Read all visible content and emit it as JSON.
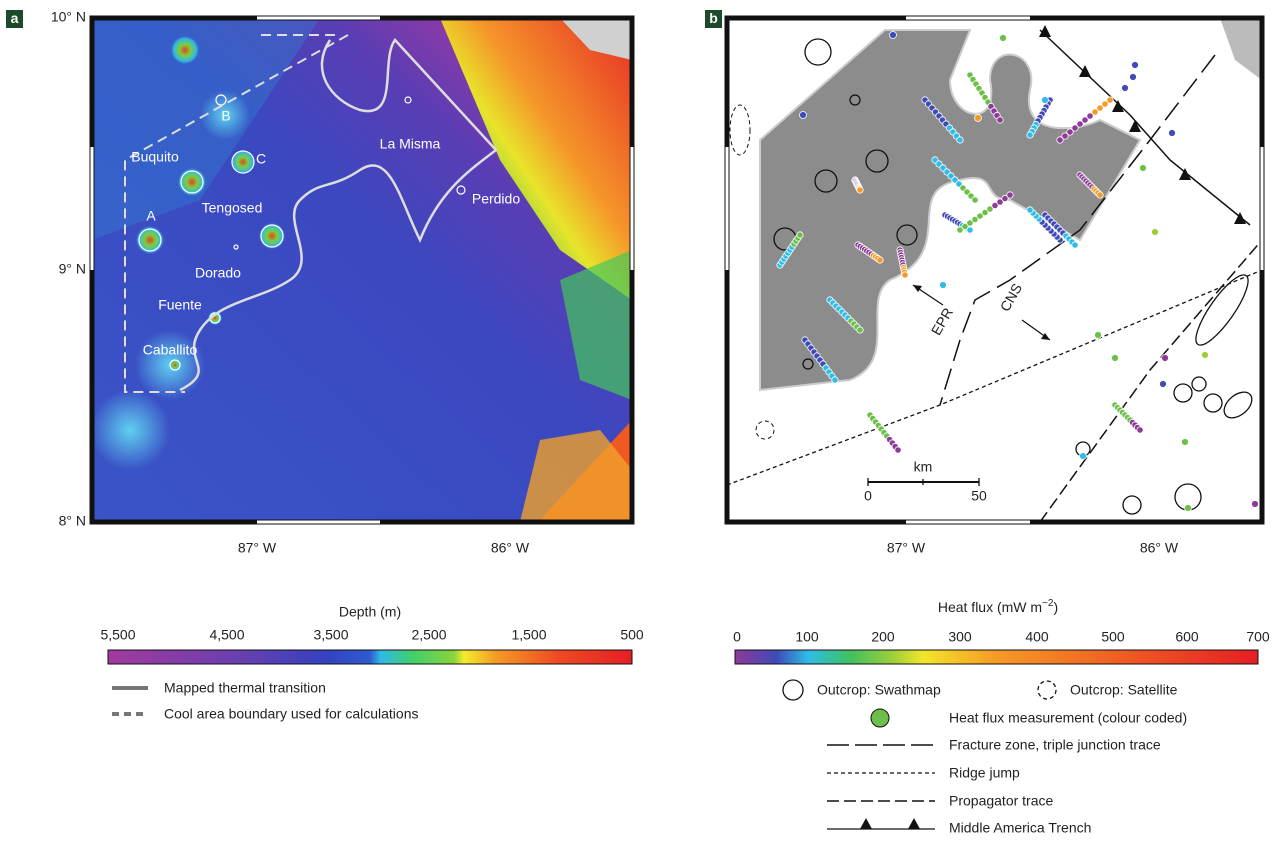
{
  "panel_a": {
    "label": "a",
    "lat_labels": [
      "10° N",
      "9° N",
      "8° N"
    ],
    "lon_labels": [
      "87° W",
      "86° W"
    ],
    "places": [
      "B",
      "C",
      "Buquito",
      "A",
      "Tengosed",
      "Dorado",
      "Fuente",
      "Caballito",
      "La Misma",
      "Perdido"
    ]
  },
  "depth_scale": {
    "title": "Depth (m)",
    "ticks": [
      "5,500",
      "4,500",
      "3,500",
      "2,500",
      "1,500",
      "500"
    ]
  },
  "legend_a": [
    "Mapped thermal transition",
    "Cool area boundary used for calculations"
  ],
  "panel_b": {
    "label": "b",
    "lon_labels": [
      "87° W",
      "86° W"
    ],
    "annotations": [
      "EPR",
      "CNS"
    ],
    "scale_bar": {
      "unit": "km",
      "ticks": [
        "0",
        "50"
      ]
    }
  },
  "heat_flux_scale": {
    "title": "Heat flux (mW m",
    "title_sup": "−2",
    "title_end": ")",
    "ticks": [
      "0",
      "100",
      "200",
      "300",
      "400",
      "500",
      "600",
      "700"
    ]
  },
  "legend_b": [
    "Outcrop: Swathmap",
    "Outcrop: Satellite",
    "Heat flux measurement (colour coded)",
    "Fracture zone, triple junction trace",
    "Ridge jump",
    "Propagator trace",
    "Middle America Trench"
  ]
}
